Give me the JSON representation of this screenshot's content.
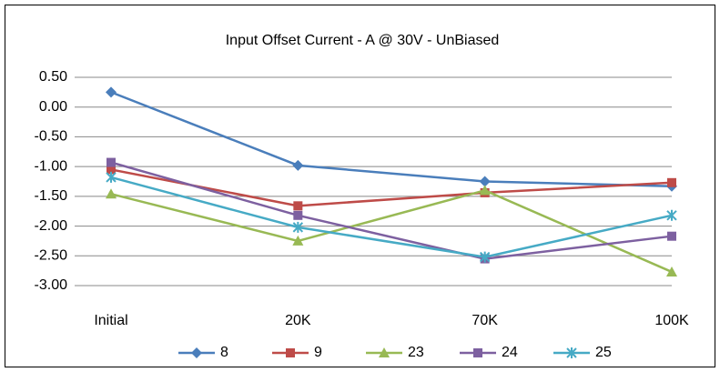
{
  "chart_data": {
    "type": "line",
    "title": "Input Offset Current - A @ 30V - UnBiased",
    "categories": [
      "Initial",
      "20K",
      "70K",
      "100K"
    ],
    "series": [
      {
        "name": "8",
        "color": "#4a7ebb",
        "marker": "diamond",
        "values": [
          0.25,
          -0.98,
          -1.25,
          -1.33
        ]
      },
      {
        "name": "9",
        "color": "#be4b48",
        "marker": "square",
        "values": [
          -1.05,
          -1.66,
          -1.44,
          -1.27
        ]
      },
      {
        "name": "23",
        "color": "#98b954",
        "marker": "triangle",
        "values": [
          -1.46,
          -2.25,
          -1.4,
          -2.77
        ]
      },
      {
        "name": "24",
        "color": "#7d60a0",
        "marker": "square",
        "values": [
          -0.93,
          -1.82,
          -2.55,
          -2.17
        ]
      },
      {
        "name": "25",
        "color": "#46aac5",
        "marker": "star",
        "values": [
          -1.18,
          -2.02,
          -2.52,
          -1.82
        ]
      }
    ],
    "ylim": [
      -3.0,
      0.5
    ],
    "yticks": [
      {
        "value": -3.0,
        "label": "-3.00"
      },
      {
        "value": -2.5,
        "label": "-2.50"
      },
      {
        "value": -2.0,
        "label": "-2.00"
      },
      {
        "value": -1.5,
        "label": "-1.50"
      },
      {
        "value": -1.0,
        "label": "-1.00"
      },
      {
        "value": -0.5,
        "label": "-0.50"
      },
      {
        "value": 0.0,
        "label": "0.00"
      },
      {
        "value": 0.5,
        "label": "0.50"
      }
    ],
    "grid": true,
    "legend": "bottom"
  }
}
